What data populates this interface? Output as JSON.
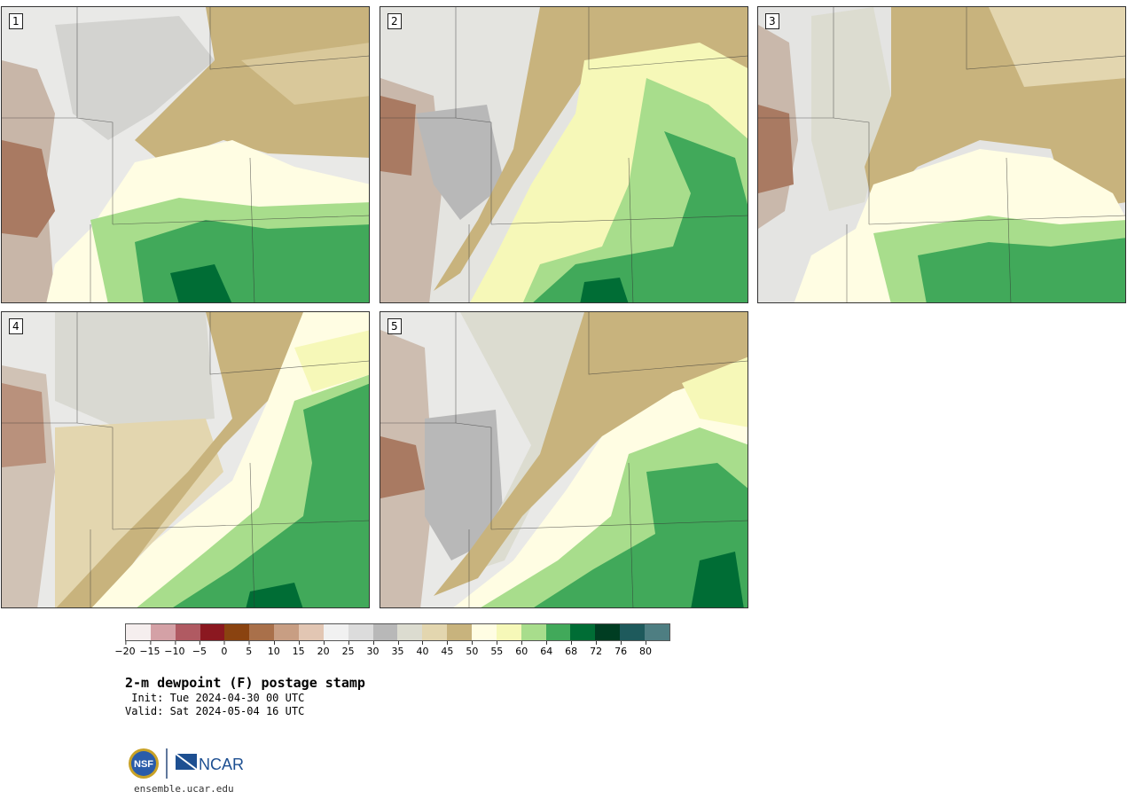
{
  "panels": [
    {
      "label": "1"
    },
    {
      "label": "2"
    },
    {
      "label": "3"
    },
    {
      "label": "4"
    },
    {
      "label": "5"
    }
  ],
  "colorbar": {
    "colors": [
      "#f5eeee",
      "#d4a1a6",
      "#b05a62",
      "#8b1820",
      "#8a4310",
      "#a9704a",
      "#c89e83",
      "#e2c6b3",
      "#f1f1f1",
      "#dcdcdc",
      "#b8b8b8",
      "#dcdcd0",
      "#e3d6af",
      "#c8b37d",
      "#fffde3",
      "#f6f8b8",
      "#a8dd8c",
      "#41a95a",
      "#006d35",
      "#003d22",
      "#1e5a5c",
      "#4e7e82"
    ],
    "tick_labels": [
      "−20",
      "−15",
      "−10",
      "−5",
      "0",
      "5",
      "10",
      "15",
      "20",
      "25",
      "30",
      "35",
      "40",
      "45",
      "50",
      "55",
      "60",
      "64",
      "68",
      "72",
      "76",
      "80"
    ]
  },
  "title": "2-m dewpoint (F) postage stamp",
  "init": " Init: Tue 2024-04-30 00 UTC",
  "valid": "Valid: Sat 2024-05-04 16 UTC",
  "logo": {
    "nsf": "NSF",
    "ncar": "NCAR"
  },
  "website": "ensemble.ucar.edu"
}
